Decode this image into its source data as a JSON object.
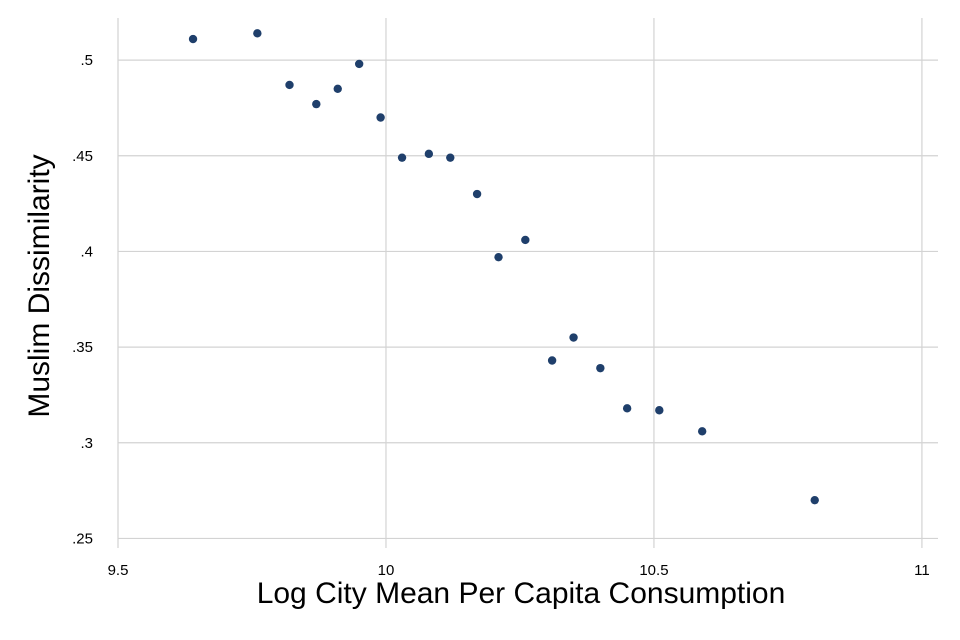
{
  "chart_data": {
    "type": "scatter",
    "title": "",
    "xlabel": "Log City Mean Per Capita Consumption",
    "ylabel": "Muslim Dissimilarity",
    "xlim": [
      9.5,
      11.03
    ],
    "ylim": [
      0.245,
      0.522
    ],
    "xticks": [
      9.5,
      10,
      10.5,
      11
    ],
    "xtick_labels": [
      "9.5",
      "10",
      "10.5",
      "11"
    ],
    "yticks": [
      0.25,
      0.3,
      0.35,
      0.4,
      0.45,
      0.5
    ],
    "ytick_labels": [
      ".25",
      ".3",
      ".35",
      ".4",
      ".45",
      ".5"
    ],
    "grid": true,
    "marker_color": "#1f3f6b",
    "points": [
      {
        "x": 9.64,
        "y": 0.511
      },
      {
        "x": 9.76,
        "y": 0.514
      },
      {
        "x": 9.82,
        "y": 0.487
      },
      {
        "x": 9.87,
        "y": 0.477
      },
      {
        "x": 9.91,
        "y": 0.485
      },
      {
        "x": 9.95,
        "y": 0.498
      },
      {
        "x": 9.99,
        "y": 0.47
      },
      {
        "x": 10.03,
        "y": 0.449
      },
      {
        "x": 10.08,
        "y": 0.451
      },
      {
        "x": 10.12,
        "y": 0.449
      },
      {
        "x": 10.17,
        "y": 0.43
      },
      {
        "x": 10.21,
        "y": 0.397
      },
      {
        "x": 10.26,
        "y": 0.406
      },
      {
        "x": 10.31,
        "y": 0.343
      },
      {
        "x": 10.35,
        "y": 0.355
      },
      {
        "x": 10.4,
        "y": 0.339
      },
      {
        "x": 10.45,
        "y": 0.318
      },
      {
        "x": 10.51,
        "y": 0.317
      },
      {
        "x": 10.59,
        "y": 0.306
      },
      {
        "x": 10.8,
        "y": 0.27
      }
    ]
  }
}
